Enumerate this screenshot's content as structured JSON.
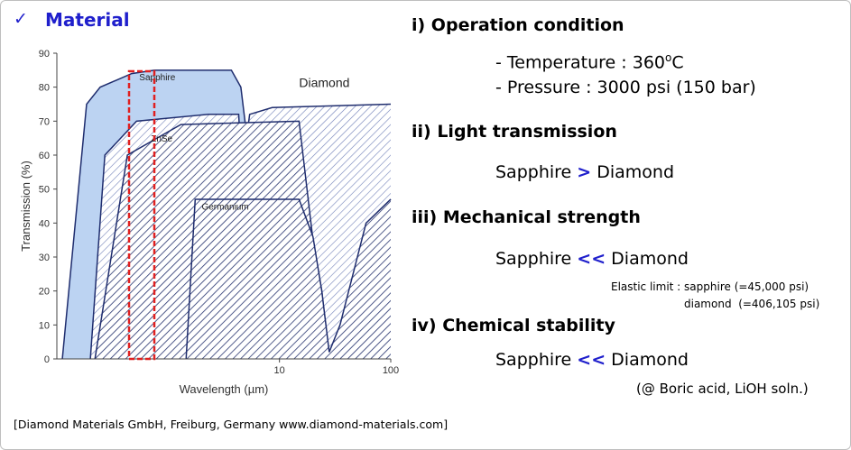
{
  "header": {
    "check": "✓",
    "title": "Material"
  },
  "source": "[Diamond Materials GmbH, Freiburg, Germany www.diamond-materials.com]",
  "sections": [
    {
      "heading": "i) Operation condition",
      "temperature": {
        "text": "- Temperature : 360",
        "sup": "o",
        "tail": "C"
      },
      "pressure": "- Pressure : 3000 psi (150 bar)"
    },
    {
      "heading": "ii) Light transmission",
      "left": "Sapphire",
      "op": ">",
      "right": "Diamond"
    },
    {
      "heading": "iii) Mechanical strength",
      "left": "Sapphire",
      "op": "<<",
      "right": "Diamond",
      "notes": [
        "Elastic limit : sapphire (=45,000 psi)",
        "diamond  (=406,105 psi)"
      ]
    },
    {
      "heading": "iv) Chemical stability",
      "left": "Sapphire",
      "op": "<<",
      "right": "Diamond",
      "notes": [
        "(@ Boric acid, LiOH soln.)"
      ]
    }
  ],
  "chart_data": {
    "type": "area",
    "log_x": true,
    "x_label": "Wavelength (µm)",
    "y_label": "Transmission (%)",
    "xlim": [
      0.1,
      100
    ],
    "xticks": [
      10,
      100
    ],
    "ylim": [
      0,
      90
    ],
    "yticks": [
      0,
      10,
      20,
      30,
      40,
      50,
      60,
      70,
      80,
      90
    ],
    "series": [
      {
        "name": "Sapphire",
        "color": "#bcd3f2",
        "x": [
          0.112,
          0.185,
          0.245,
          0.47,
          0.75,
          3.7,
          4.5,
          4.9,
          5.4,
          7.1,
          8.6,
          9.4
        ],
        "values": [
          0,
          75,
          80,
          84,
          85,
          85,
          80,
          70,
          50,
          20,
          5,
          0
        ]
      },
      {
        "name": "Diamond",
        "color": "#6f7fb8",
        "x": [
          0.2,
          0.27,
          0.52,
          2.3,
          4.3,
          4.6,
          5.4,
          8.6,
          100
        ],
        "values": [
          0,
          60,
          70,
          72,
          72,
          55,
          72,
          74,
          75
        ]
      },
      {
        "name": "ZnSe",
        "color": "#27346f",
        "x": [
          0.22,
          0.43,
          1.3,
          15,
          20,
          24,
          28
        ],
        "values": [
          0,
          60,
          69,
          70,
          35,
          20,
          0
        ]
      },
      {
        "name": "Germanium",
        "color": "#27346f",
        "x": [
          1.45,
          1.75,
          15,
          20,
          24,
          28,
          35,
          60,
          100
        ],
        "values": [
          0,
          47,
          47,
          36,
          20,
          2,
          10,
          40,
          47
        ]
      }
    ]
  }
}
